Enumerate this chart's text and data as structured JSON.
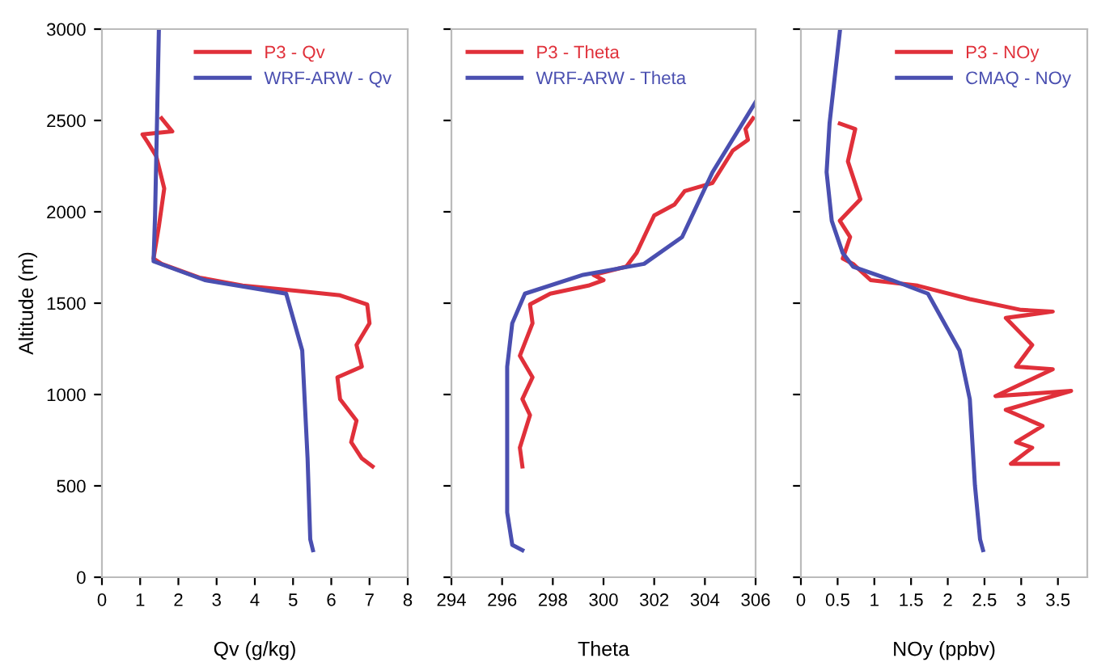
{
  "chart_data": [
    {
      "type": "line",
      "xlabel": "Qv (g/kg)",
      "ylabel": "Altitude (m)",
      "xlim": [
        0,
        8
      ],
      "xticks": [
        0,
        1,
        2,
        3,
        4,
        5,
        6,
        7,
        8
      ],
      "ylim": [
        0,
        3000
      ],
      "yticks": [
        0,
        500,
        1000,
        1500,
        2000,
        2500,
        3000
      ],
      "legend": "top right",
      "series": [
        {
          "name": "P3 - Qv",
          "color": "#e0303a",
          "x": [
            1.56,
            1.84,
            1.06,
            1.2,
            1.42,
            1.63,
            1.49,
            1.35,
            1.56,
            2.55,
            3.68,
            5.1,
            6.23,
            6.94,
            7.0,
            6.66,
            6.8,
            6.16,
            6.23,
            6.66,
            6.52,
            6.8,
            7.08
          ],
          "values": [
            2512,
            2440,
            2424,
            2380,
            2305,
            2128,
            1921,
            1744,
            1715,
            1640,
            1596,
            1567,
            1543,
            1493,
            1390,
            1271,
            1153,
            1094,
            975,
            857,
            739,
            650,
            606
          ]
        },
        {
          "name": "WRF-ARW - Qv",
          "color": "#4a4fb0",
          "x": [
            1.49,
            1.44,
            1.39,
            1.35,
            2.69,
            4.82,
            5.24,
            5.38,
            5.45,
            5.52
          ],
          "values": [
            3000,
            2483,
            1980,
            1729,
            1626,
            1552,
            1241,
            650,
            207,
            148
          ]
        }
      ]
    },
    {
      "type": "line",
      "xlabel": "Theta",
      "xlim": [
        294,
        306
      ],
      "xticks": [
        294,
        296,
        298,
        300,
        302,
        304,
        306
      ],
      "ylim": [
        0,
        3000
      ],
      "tick_labels": "x",
      "legend": "top left",
      "series": [
        {
          "name": "P3 - Theta",
          "color": "#e0303a",
          "x": [
            305.9,
            305.6,
            305.7,
            305.1,
            304.3,
            303.2,
            302.8,
            302.0,
            301.3,
            300.9,
            299.6,
            300.0,
            299.4,
            297.9,
            297.1,
            297.2,
            296.7,
            297.2,
            296.8,
            297.1,
            296.7,
            296.8
          ],
          "values": [
            2512,
            2453,
            2394,
            2335,
            2158,
            2113,
            2040,
            1980,
            1774,
            1700,
            1655,
            1626,
            1596,
            1552,
            1493,
            1390,
            1212,
            1094,
            975,
            887,
            709,
            606
          ]
        },
        {
          "name": "WRF-ARW - Theta",
          "color": "#4a4fb0",
          "x": [
            306.0,
            304.3,
            303.1,
            301.6,
            299.2,
            296.9,
            296.4,
            296.2,
            296.2,
            296.4,
            296.8
          ],
          "values": [
            2601,
            2217,
            1862,
            1715,
            1655,
            1552,
            1390,
            1153,
            355,
            177,
            148
          ]
        }
      ]
    },
    {
      "type": "line",
      "xlabel": "NOy (ppbv)",
      "xlim": [
        0,
        3.9
      ],
      "xticks": [
        0,
        0.5,
        1,
        1.5,
        2,
        2.5,
        3,
        3.5
      ],
      "ylim": [
        0,
        3000
      ],
      "tick_labels": "x",
      "legend": "top right",
      "series": [
        {
          "name": "P3 - NOy",
          "color": "#e0303a",
          "x": [
            0.53,
            0.74,
            0.64,
            0.81,
            0.53,
            0.67,
            0.57,
            0.71,
            0.95,
            1.59,
            2.3,
            3.0,
            3.43,
            2.79,
            3.15,
            2.93,
            3.43,
            2.65,
            3.68,
            2.79,
            3.29,
            2.93,
            3.15,
            2.86,
            3.5
          ],
          "values": [
            2483,
            2453,
            2276,
            2069,
            1951,
            1862,
            1744,
            1715,
            1626,
            1596,
            1522,
            1463,
            1454,
            1419,
            1271,
            1153,
            1138,
            991,
            1020,
            916,
            828,
            739,
            709,
            621,
            621
          ]
        },
        {
          "name": "CMAQ - NOy",
          "color": "#4a4fb0",
          "x": [
            0.53,
            0.39,
            0.35,
            0.42,
            0.57,
            0.71,
            1.24,
            1.73,
            2.16,
            2.3,
            2.37,
            2.44,
            2.48
          ],
          "values": [
            2986,
            2483,
            2217,
            1951,
            1774,
            1700,
            1626,
            1552,
            1241,
            975,
            503,
            207,
            148
          ]
        }
      ]
    }
  ]
}
